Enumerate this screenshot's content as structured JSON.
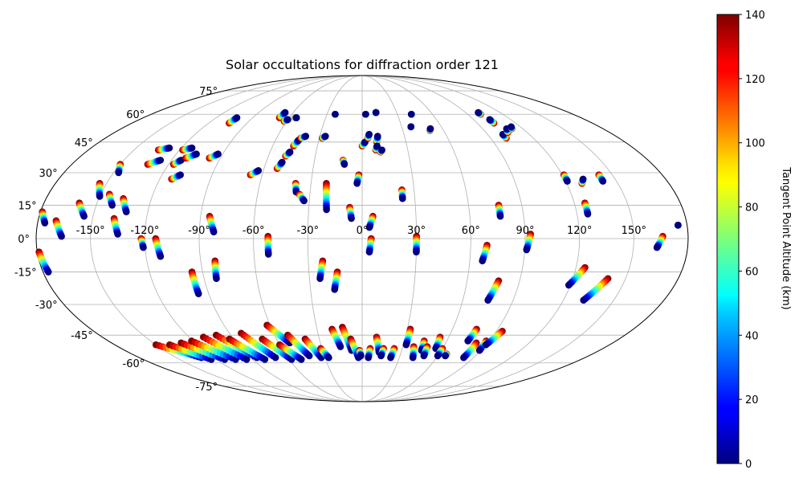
{
  "chart_data": {
    "type": "scatter",
    "projection": "mollweide",
    "title": "Solar occultations for diffraction order 121",
    "longitude_ticks": [
      -150,
      -120,
      -90,
      -60,
      -30,
      0,
      30,
      60,
      90,
      120,
      150
    ],
    "longitude_tick_labels": [
      "-150°",
      "-120°",
      "-90°",
      "-60°",
      "-30°",
      "0°",
      "30°",
      "60°",
      "90°",
      "120°",
      "150°"
    ],
    "latitude_ticks": [
      -75,
      -60,
      -45,
      -30,
      -15,
      0,
      15,
      30,
      45,
      60,
      75
    ],
    "latitude_tick_labels": [
      "-75°",
      "-60°",
      "-45°",
      "-30°",
      "-15°",
      "0°",
      "15°",
      "30°",
      "45°",
      "60°",
      "75°"
    ],
    "grid": true,
    "colorbar": {
      "label": "Tangent Point Altitude (km)",
      "range": [
        0,
        140
      ],
      "ticks": [
        0,
        20,
        40,
        60,
        80,
        100,
        120,
        140
      ],
      "tick_labels": [
        "0",
        "20",
        "40",
        "60",
        "80",
        "100",
        "120",
        "140"
      ],
      "colormap": "jet"
    },
    "tracks": [
      [
        -179,
        12,
        -176,
        7
      ],
      [
        -170,
        8,
        -166,
        1
      ],
      [
        -160,
        16,
        -155,
        10
      ],
      [
        -154,
        25,
        -150,
        19
      ],
      [
        -150,
        34,
        -147,
        30
      ],
      [
        -145,
        20,
        -141,
        15
      ],
      [
        -138,
        9,
        -135,
        2
      ],
      [
        -136,
        18,
        -132,
        12
      ],
      [
        -134,
        41,
        -128,
        42
      ],
      [
        -133,
        34,
        -127,
        36
      ],
      [
        -122,
        0,
        -121,
        -4
      ],
      [
        -118,
        41,
        -113,
        42
      ],
      [
        -117,
        34,
        -114,
        36
      ],
      [
        -112,
        37,
        -107,
        39
      ],
      [
        -114,
        0,
        -112,
        -8
      ],
      [
        -113,
        27,
        -109,
        29
      ],
      [
        -104,
        55,
        -103,
        58
      ],
      [
        -97,
        37,
        -93,
        39
      ],
      [
        -96,
        -15,
        -96,
        -25
      ],
      [
        -85,
        10,
        -82,
        3
      ],
      [
        -82,
        -10,
        -83,
        -18
      ],
      [
        -68,
        58,
        -67,
        61
      ],
      [
        -67,
        29,
        -63,
        31
      ],
      [
        -62,
        56,
        -60,
        57
      ],
      [
        -55,
        58,
        -54,
        58
      ],
      [
        -52,
        1,
        -52,
        -7
      ],
      [
        -52,
        32,
        -50,
        35
      ],
      [
        -49,
        38,
        -47,
        40
      ],
      [
        -46,
        43,
        -44,
        46
      ],
      [
        -43,
        47,
        -40,
        48
      ],
      [
        -39,
        25,
        -38,
        21
      ],
      [
        -36,
        20,
        -33,
        17
      ],
      [
        -28,
        47,
        -26,
        48
      ],
      [
        -23,
        60,
        -23,
        60
      ],
      [
        -21,
        25,
        -20,
        13
      ],
      [
        -22,
        -10,
        -24,
        -18
      ],
      [
        -14,
        -15,
        -16,
        -23
      ],
      [
        -12,
        36,
        -11,
        34
      ],
      [
        -7,
        14,
        -6,
        9
      ],
      [
        -2,
        29,
        -3,
        25
      ],
      [
        0,
        43,
        2,
        45
      ],
      [
        3,
        60,
        3,
        60
      ],
      [
        4,
        47,
        5,
        49
      ],
      [
        6,
        10,
        4,
        5
      ],
      [
        5,
        0,
        4,
        -6
      ],
      [
        10,
        45,
        11,
        48
      ],
      [
        9,
        41,
        10,
        43
      ],
      [
        12,
        61,
        12,
        61
      ],
      [
        12,
        40,
        13,
        41
      ],
      [
        23,
        22,
        23,
        18
      ],
      [
        30,
        1,
        30,
        -6
      ],
      [
        42,
        60,
        42,
        60
      ],
      [
        37,
        53,
        37,
        53
      ],
      [
        50,
        51,
        51,
        52
      ],
      [
        69,
        -3,
        67,
        -10
      ],
      [
        77,
        15,
        77,
        10
      ],
      [
        78,
        -19,
        75,
        -28
      ],
      [
        93,
        2,
        91,
        -5
      ],
      [
        101,
        60,
        101,
        61
      ],
      [
        103,
        55,
        103,
        57
      ],
      [
        101,
        47,
        101,
        49
      ],
      [
        106,
        50,
        108,
        52
      ],
      [
        112,
        52,
        113,
        53
      ],
      [
        121,
        29,
        121,
        26
      ],
      [
        125,
        -13,
        119,
        -21
      ],
      [
        126,
        16,
        126,
        11
      ],
      [
        129,
        25,
        131,
        27
      ],
      [
        140,
        -18,
        132,
        -28
      ],
      [
        142,
        29,
        142,
        26
      ],
      [
        166,
        1,
        163,
        -4
      ],
      [
        175,
        6,
        175,
        6
      ],
      [
        -179,
        -6,
        -177,
        -15
      ],
      [
        -150,
        -50,
        -130,
        -57
      ],
      [
        -140,
        -50,
        -124,
        -58
      ],
      [
        -130,
        -49,
        -113,
        -58
      ],
      [
        -121,
        -48,
        -104,
        -58
      ],
      [
        -110,
        -46,
        -95,
        -58
      ],
      [
        -100,
        -45,
        -85,
        -57
      ],
      [
        -93,
        -47,
        -80,
        -58
      ],
      [
        -82,
        -44,
        -70,
        -57
      ],
      [
        -70,
        -47,
        -58,
        -58
      ],
      [
        -62,
        -40,
        -52,
        -49
      ],
      [
        -60,
        -50,
        -50,
        -58
      ],
      [
        -51,
        -45,
        -42,
        -56
      ],
      [
        -40,
        -47,
        -33,
        -57
      ],
      [
        -31,
        -52,
        -27,
        -57
      ],
      [
        -20,
        -42,
        -16,
        -51
      ],
      [
        -13,
        -41,
        -8,
        -53
      ],
      [
        -8,
        -47,
        -3,
        -57
      ],
      [
        -2,
        -53,
        -1,
        -56
      ],
      [
        6,
        -52,
        5,
        -57
      ],
      [
        10,
        -46,
        13,
        -54
      ],
      [
        16,
        -52,
        15,
        -56
      ],
      [
        24,
        -52,
        23,
        -57
      ],
      [
        32,
        -42,
        32,
        -50
      ],
      [
        38,
        -51,
        41,
        -57
      ],
      [
        44,
        -48,
        45,
        -53
      ],
      [
        48,
        -51,
        49,
        -56
      ],
      [
        54,
        -46,
        55,
        -52
      ],
      [
        60,
        -52,
        60,
        -56
      ],
      [
        66,
        -55,
        66,
        -56
      ],
      [
        76,
        -42,
        75,
        -48
      ],
      [
        82,
        -49,
        82,
        -57
      ],
      [
        88,
        -48,
        89,
        -53
      ],
      [
        94,
        -43,
        90,
        -50
      ]
    ]
  }
}
